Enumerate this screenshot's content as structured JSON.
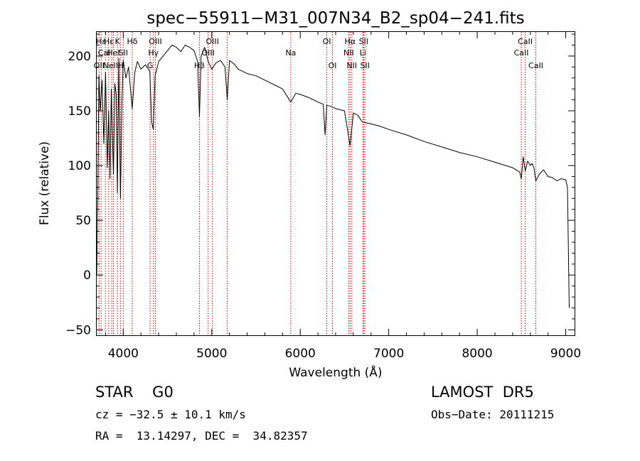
{
  "chart_data": {
    "type": "line",
    "title": "spec−55911−M31_007N34_B2_sp04−241.fits",
    "xlabel": "Wavelength (Å)",
    "ylabel": "Flux (relative)",
    "xlim": [
      3700,
      9100
    ],
    "ylim": [
      -55,
      222
    ],
    "xticks": [
      4000,
      5000,
      6000,
      7000,
      8000,
      9000
    ],
    "yticks": [
      -50,
      0,
      50,
      100,
      150,
      200
    ],
    "grid": false,
    "colors": {
      "spectrum": "#000000",
      "lines": "#cc0000",
      "axes": "#000000"
    },
    "series": [
      {
        "x": [
          3700,
          3712,
          3725,
          3740,
          3760,
          3780,
          3800,
          3820,
          3835,
          3850,
          3865,
          3880,
          3890,
          3905,
          3920,
          3934,
          3950,
          3968,
          3985,
          4000,
          4030,
          4060,
          4101,
          4130,
          4160,
          4200,
          4250,
          4300,
          4320,
          4340,
          4360,
          4400,
          4450,
          4500,
          4550,
          4600,
          4650,
          4700,
          4750,
          4800,
          4840,
          4861,
          4880,
          4920,
          4960,
          5000,
          5050,
          5100,
          5150,
          5175,
          5200,
          5250,
          5300,
          5400,
          5500,
          5600,
          5700,
          5800,
          5893,
          5950,
          6000,
          6100,
          6200,
          6260,
          6280,
          6300,
          6350,
          6400,
          6500,
          6563,
          6600,
          6650,
          6700,
          6800,
          6900,
          7000,
          7200,
          7400,
          7600,
          7800,
          8000,
          8200,
          8400,
          8480,
          8498,
          8520,
          8542,
          8570,
          8600,
          8620,
          8640,
          8662,
          8700,
          8750,
          8800,
          8850,
          8900,
          8950,
          9000,
          9020,
          9040
        ],
        "y": [
          0,
          75,
          182,
          150,
          178,
          120,
          185,
          98,
          150,
          88,
          170,
          120,
          92,
          175,
          165,
          75,
          198,
          70,
          160,
          196,
          180,
          190,
          152,
          185,
          195,
          188,
          192,
          186,
          140,
          133,
          182,
          195,
          200,
          205,
          210,
          208,
          204,
          210,
          208,
          205,
          195,
          145,
          200,
          208,
          195,
          188,
          194,
          196,
          190,
          160,
          196,
          193,
          188,
          184,
          182,
          178,
          174,
          170,
          158,
          166,
          165,
          162,
          158,
          156,
          128,
          155,
          154,
          152,
          150,
          118,
          148,
          146,
          140,
          138,
          136,
          133,
          128,
          122,
          117,
          112,
          108,
          103,
          98,
          94,
          88,
          108,
          95,
          104,
          100,
          102,
          98,
          86,
          92,
          96,
          90,
          89,
          86,
          88,
          87,
          80,
          -30
        ]
      }
    ],
    "lines": [
      {
        "x": 3727,
        "label": "OII",
        "row": 3
      },
      {
        "x": 3750,
        "label": "Hε",
        "row": 1
      },
      {
        "x": 3798,
        "label": "CaII",
        "row": 2
      },
      {
        "x": 3835,
        "label": "Hε",
        "row": 1
      },
      {
        "x": 3869,
        "label": "NeIII",
        "row": 3
      },
      {
        "x": 3889,
        "label": "HeI",
        "row": 2
      },
      {
        "x": 3934,
        "label": "K",
        "row": 1
      },
      {
        "x": 3968,
        "label": "H",
        "row": 3
      },
      {
        "x": 4000,
        "label": "SII",
        "row": 2
      },
      {
        "x": 4102,
        "label": "Hδ",
        "row": 1
      },
      {
        "x": 4304,
        "label": "G",
        "row": 3
      },
      {
        "x": 4341,
        "label": "Hγ",
        "row": 2
      },
      {
        "x": 4363,
        "label": "OIII",
        "row": 1
      },
      {
        "x": 4861,
        "label": "Hβ",
        "row": 3
      },
      {
        "x": 4959,
        "label": "OIII",
        "row": 2
      },
      {
        "x": 5007,
        "label": "OIII",
        "row": 1
      },
      {
        "x": 5175,
        "label": "",
        "row": 1
      },
      {
        "x": 5893,
        "label": "Na",
        "row": 2
      },
      {
        "x": 6300,
        "label": "OI",
        "row": 1
      },
      {
        "x": 6364,
        "label": "OI",
        "row": 3
      },
      {
        "x": 6548,
        "label": "NII",
        "row": 2
      },
      {
        "x": 6563,
        "label": "Hα",
        "row": 1
      },
      {
        "x": 6583,
        "label": "NII",
        "row": 3
      },
      {
        "x": 6708,
        "label": "Li",
        "row": 2
      },
      {
        "x": 6716,
        "label": "SII",
        "row": 1
      },
      {
        "x": 6731,
        "label": "SII",
        "row": 3
      },
      {
        "x": 8498,
        "label": "CaII",
        "row": 2
      },
      {
        "x": 8542,
        "label": "CaII",
        "row": 1
      },
      {
        "x": 8662,
        "label": "CaII",
        "row": 3
      }
    ]
  },
  "info": {
    "object_class": "STAR    G0",
    "survey": "LAMOST  DR5",
    "cz": "cz = −32.5 ± 10.1 km/s",
    "obs_date": "Obs−Date: 20111215",
    "coords": "RA =  13.14297, DEC =  34.82357"
  }
}
